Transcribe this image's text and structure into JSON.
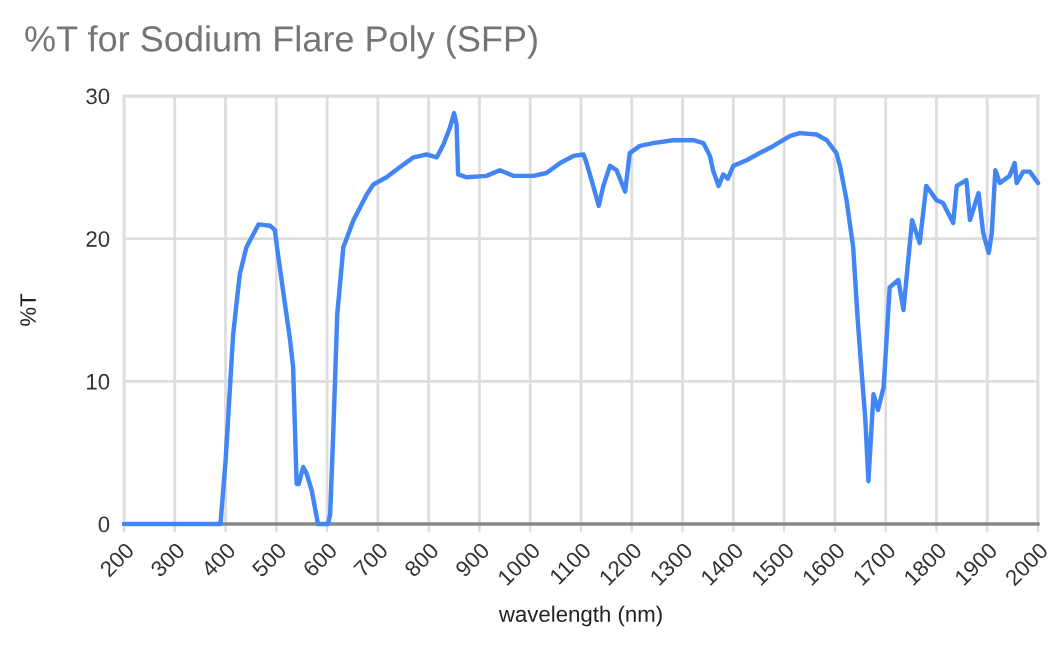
{
  "chart_data": {
    "type": "line",
    "title": "%T for Sodium Flare Poly (SFP)",
    "xlabel": "wavelength (nm)",
    "ylabel": "%T",
    "xlim": [
      200,
      2000
    ],
    "xticks": [
      200,
      300,
      400,
      500,
      600,
      700,
      800,
      900,
      1000,
      1100,
      1200,
      1300,
      1400,
      1500,
      1600,
      1700,
      1800,
      1900,
      2000
    ],
    "ylim": [
      0,
      30
    ],
    "yticks": [
      0,
      10,
      20,
      30
    ],
    "grid": true,
    "x": [
      200,
      300,
      390,
      400,
      415,
      428,
      441,
      465,
      488,
      497,
      504,
      527,
      533,
      540,
      544,
      553,
      560,
      570,
      582,
      590,
      602,
      606,
      612,
      620,
      632,
      652,
      678,
      691,
      717,
      743,
      770,
      796,
      816,
      829,
      842,
      850,
      855,
      858,
      875,
      914,
      940,
      967,
      1006,
      1032,
      1059,
      1085,
      1105,
      1111,
      1124,
      1135,
      1144,
      1157,
      1170,
      1187,
      1196,
      1216,
      1242,
      1281,
      1321,
      1341,
      1354,
      1360,
      1371,
      1380,
      1389,
      1400,
      1426,
      1452,
      1479,
      1512,
      1531,
      1564,
      1584,
      1603,
      1610,
      1623,
      1636,
      1645,
      1650,
      1660,
      1666,
      1676,
      1685,
      1696,
      1708,
      1725,
      1735,
      1752,
      1767,
      1780,
      1800,
      1813,
      1833,
      1840,
      1859,
      1866,
      1883,
      1892,
      1903,
      1909,
      1916,
      1925,
      1944,
      1954,
      1958,
      1971,
      1984,
      2000
    ],
    "series": [
      {
        "color": "#4285f4",
        "values": [
          0,
          0,
          0,
          4.4,
          13.3,
          17.5,
          19.4,
          21.0,
          20.9,
          20.6,
          18.7,
          12.9,
          11.0,
          2.8,
          2.8,
          4.0,
          3.5,
          2.3,
          0,
          0,
          0,
          0.7,
          6.3,
          14.7,
          19.4,
          21.3,
          23.1,
          23.8,
          24.3,
          25.0,
          25.7,
          25.9,
          25.7,
          26.6,
          27.8,
          28.8,
          28.0,
          24.5,
          24.3,
          24.4,
          24.8,
          24.4,
          24.4,
          24.6,
          25.3,
          25.8,
          25.9,
          25.3,
          23.7,
          22.3,
          23.7,
          25.1,
          24.8,
          23.3,
          26.0,
          26.5,
          26.7,
          26.9,
          26.9,
          26.7,
          25.8,
          24.8,
          23.7,
          24.5,
          24.2,
          25.1,
          25.5,
          26.0,
          26.5,
          27.2,
          27.4,
          27.3,
          26.9,
          26.0,
          25.1,
          22.7,
          19.4,
          14.3,
          11.9,
          7.3,
          3.0,
          9.1,
          8.0,
          9.6,
          16.6,
          17.1,
          15.0,
          21.3,
          19.7,
          23.7,
          22.7,
          22.5,
          21.1,
          23.7,
          24.1,
          21.3,
          23.2,
          20.4,
          19.0,
          20.4,
          24.8,
          23.9,
          24.4,
          25.3,
          23.9,
          24.7,
          24.7,
          23.9
        ]
      }
    ]
  }
}
